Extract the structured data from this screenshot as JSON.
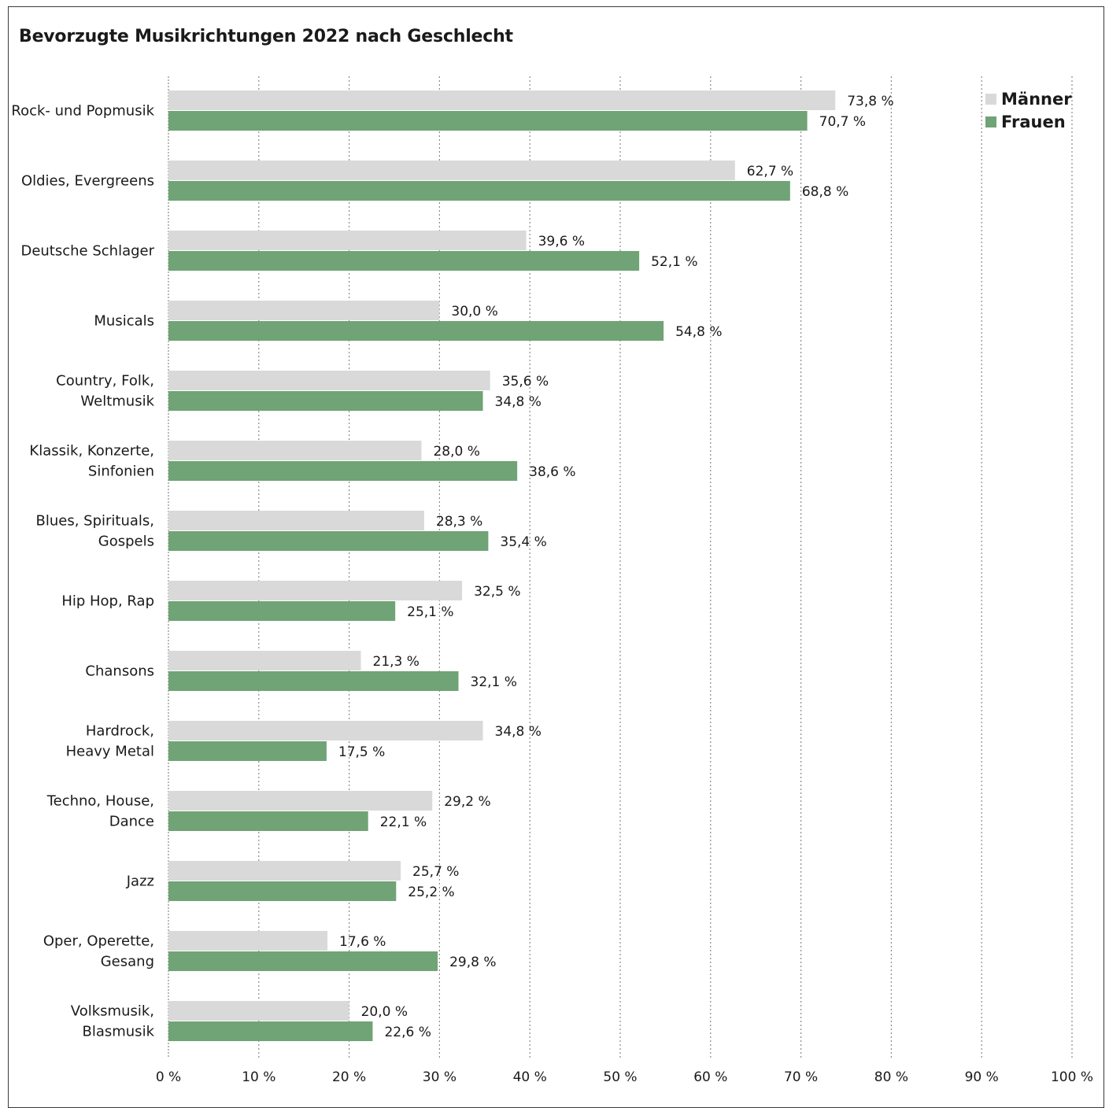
{
  "title": "Bevorzugte Musikrichtungen 2022 nach Geschlecht",
  "colors": {
    "maenner": "#d9d9d9",
    "frauen": "#70a375",
    "grid": "#8a8a8a"
  },
  "chart_data": {
    "type": "bar",
    "orientation": "horizontal",
    "title": "Bevorzugte Musikrichtungen 2022 nach Geschlecht",
    "categories": [
      [
        "Rock- und Popmusik"
      ],
      [
        "Oldies, Evergreens"
      ],
      [
        "Deutsche Schlager"
      ],
      [
        "Musicals"
      ],
      [
        "Country, Folk,",
        "Weltmusik"
      ],
      [
        "Klassik, Konzerte,",
        "Sinfonien"
      ],
      [
        "Blues, Spirituals,",
        "Gospels"
      ],
      [
        "Hip Hop, Rap"
      ],
      [
        "Chansons"
      ],
      [
        "Hardrock,",
        "Heavy Metal"
      ],
      [
        "Techno, House,",
        "Dance"
      ],
      [
        "Jazz"
      ],
      [
        "Oper, Operette,",
        "Gesang"
      ],
      [
        "Volksmusik,",
        "Blasmusik"
      ]
    ],
    "series": [
      {
        "name": "Männer",
        "color": "#d9d9d9",
        "values": [
          73.8,
          62.7,
          39.6,
          30.0,
          35.6,
          28.0,
          28.3,
          32.5,
          21.3,
          34.8,
          29.2,
          25.7,
          17.6,
          20.0
        ],
        "labels": [
          "73,8 %",
          "62,7 %",
          "39,6 %",
          "30,0 %",
          "35,6 %",
          "28,0 %",
          "28,3 %",
          "32,5 %",
          "21,3 %",
          "34,8 %",
          "29,2 %",
          "25,7 %",
          "17,6 %",
          "20,0 %"
        ]
      },
      {
        "name": "Frauen",
        "color": "#70a375",
        "values": [
          70.7,
          68.8,
          52.1,
          54.8,
          34.8,
          38.6,
          35.4,
          25.1,
          32.1,
          17.5,
          22.1,
          25.2,
          29.8,
          22.6
        ],
        "labels": [
          "70,7 %",
          "68,8 %",
          "52,1 %",
          "54,8 %",
          "34,8 %",
          "38,6 %",
          "35,4 %",
          "25,1 %",
          "32,1 %",
          "17,5 %",
          "22,1 %",
          "25,2 %",
          "29,8 %",
          "22,6 %"
        ]
      }
    ],
    "xlim": [
      0,
      100
    ],
    "xticks": [
      0,
      10,
      20,
      30,
      40,
      50,
      60,
      70,
      80,
      90,
      100
    ],
    "xtick_labels": [
      "0 %",
      "10 %",
      "20 %",
      "30 %",
      "40 %",
      "50 %",
      "60 %",
      "70 %",
      "80 %",
      "90 %",
      "100 %"
    ],
    "grid": "vertical dotted",
    "legend": "top-right"
  }
}
